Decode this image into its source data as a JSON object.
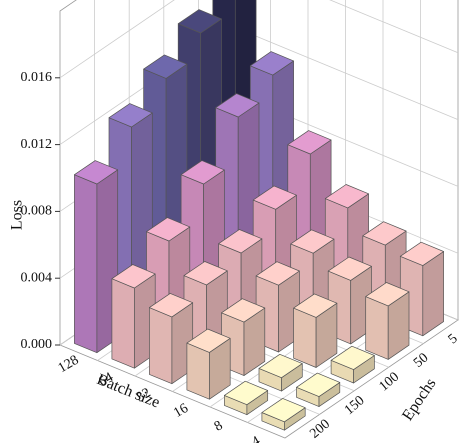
{
  "chart_data": {
    "type": "bar3d",
    "y_label": "Batch size",
    "x_label": "Epochs",
    "z_label": "Loss",
    "y_categories": [
      "128",
      "64",
      "32",
      "16",
      "8",
      "4"
    ],
    "x_categories": [
      "5",
      "50",
      "100",
      "150",
      "200"
    ],
    "values": [
      [
        0.0165,
        0.0149,
        0.0136,
        0.0121,
        0.0101
      ],
      [
        0.0119,
        0.0108,
        0.0082,
        0.0062,
        0.0048
      ],
      [
        0.0081,
        0.0062,
        0.005,
        0.0045,
        0.004
      ],
      [
        0.0058,
        0.0045,
        0.004,
        0.0032,
        0.0028
      ],
      [
        0.0045,
        0.0038,
        0.003,
        0.0008,
        0.0006
      ],
      [
        0.0042,
        0.0032,
        0.0008,
        0.0006,
        0.0005
      ]
    ],
    "zlim": [
      0,
      0.02
    ],
    "zticks": [
      {
        "value": 0,
        "label": "0.000"
      },
      {
        "value": 0.004,
        "label": "0.004"
      },
      {
        "value": 0.008,
        "label": "0.008"
      },
      {
        "value": 0.012,
        "label": "0.012"
      },
      {
        "value": 0.016,
        "label": "0.016"
      }
    ],
    "colormap": [
      "#fff6c4",
      "#f6d0c0",
      "#eaa8c4",
      "#c884c8",
      "#7e76c0",
      "#2a2a50"
    ],
    "grid": true
  }
}
